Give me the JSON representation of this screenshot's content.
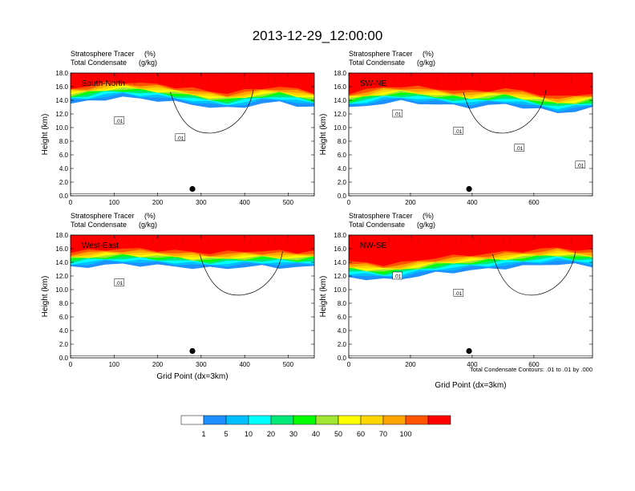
{
  "figure": {
    "title": "2013-12-29_12:00:00",
    "xlabel": "Grid Point (dx=3km)",
    "contour_note": "Total Condensate Contours: .01 to .01 by .000"
  },
  "chart_data": [
    {
      "type": "cross-section",
      "panel_label": "South-North",
      "subtitle_left": [
        "Stratosphere Tracer",
        "Total Condensate"
      ],
      "subtitle_units": [
        "(%)",
        "(g/kg)"
      ],
      "ylabel": "Height (km)",
      "xlim": [
        0,
        560
      ],
      "ylim": [
        0,
        18
      ],
      "xticks": [
        "0",
        "100",
        "200",
        "300",
        "400",
        "500"
      ],
      "yticks": [
        "0.0",
        "2.0",
        "4.0",
        "6.0",
        "8.0",
        "10.0",
        "12.0",
        "14.0",
        "16.0",
        "18.0"
      ],
      "marker_x": 280,
      "contour_labels": [
        ".01",
        ".01"
      ],
      "tropopause_km": [
        14.9,
        15.2,
        15.6,
        15.8,
        15.6,
        15.4,
        15.1,
        14.8,
        14.4,
        14.2,
        14.5,
        14.9,
        15.1,
        14.7,
        14.3
      ]
    },
    {
      "type": "cross-section",
      "panel_label": "SW-NE",
      "subtitle_left": [
        "Stratosphere Tracer",
        "Total Condensate"
      ],
      "subtitle_units": [
        "(%)",
        "(g/kg)"
      ],
      "ylabel": "Height (km)",
      "xlim": [
        0,
        790
      ],
      "ylim": [
        0,
        18
      ],
      "xticks": [
        "0",
        "200",
        "400",
        "600"
      ],
      "yticks": [
        "0.0",
        "2.0",
        "4.0",
        "6.0",
        "8.0",
        "10.0",
        "12.0",
        "14.0",
        "16.0",
        "18.0"
      ],
      "marker_x": 390,
      "contour_labels": [
        ".01",
        ".01",
        ".01",
        ".01"
      ],
      "tropopause_km": [
        14.2,
        14.6,
        15.0,
        15.2,
        15.0,
        14.8,
        14.6,
        14.4,
        14.6,
        14.8,
        14.4,
        14.0,
        13.6,
        13.8,
        14.2
      ]
    },
    {
      "type": "cross-section",
      "panel_label": "West-East",
      "subtitle_left": [
        "Stratosphere Tracer",
        "Total Condensate"
      ],
      "subtitle_units": [
        "(%)",
        "(g/kg)"
      ],
      "ylabel": "Height (km)",
      "xlim": [
        0,
        560
      ],
      "ylim": [
        0,
        18
      ],
      "xticks": [
        "0",
        "100",
        "200",
        "300",
        "400",
        "500"
      ],
      "yticks": [
        "0.0",
        "2.0",
        "4.0",
        "6.0",
        "8.0",
        "10.0",
        "12.0",
        "14.0",
        "16.0",
        "18.0"
      ],
      "marker_x": 280,
      "contour_labels": [
        ".01"
      ],
      "tropopause_km": [
        14.6,
        14.8,
        15.0,
        15.1,
        15.0,
        14.9,
        14.8,
        14.6,
        14.5,
        14.6,
        14.7,
        14.8,
        14.7,
        14.6,
        14.8
      ]
    },
    {
      "type": "cross-section",
      "panel_label": "NW-SE",
      "subtitle_left": [
        "Stratosphere Tracer",
        "Total Condensate"
      ],
      "subtitle_units": [
        "(%)",
        "(g/kg)"
      ],
      "ylabel": "Height (km)",
      "xlim": [
        0,
        790
      ],
      "ylim": [
        0,
        18
      ],
      "xticks": [
        "0",
        "200",
        "400",
        "600"
      ],
      "yticks": [
        "0.0",
        "2.0",
        "4.0",
        "6.0",
        "8.0",
        "10.0",
        "12.0",
        "14.0",
        "16.0",
        "18.0"
      ],
      "marker_x": 390,
      "contour_labels": [
        ".01",
        ".01"
      ],
      "tropopause_km": [
        13.2,
        13.0,
        12.8,
        13.0,
        13.4,
        13.8,
        14.0,
        14.2,
        14.4,
        14.6,
        14.8,
        15.0,
        15.2,
        15.0,
        14.8
      ]
    }
  ],
  "colorbar": {
    "colors": [
      "#ffffff",
      "#1e90ff",
      "#00bfff",
      "#00ffff",
      "#00e878",
      "#00ff00",
      "#a0e632",
      "#ffff00",
      "#ffd700",
      "#ffa500",
      "#ff5500",
      "#ff0000"
    ],
    "labels": [
      "1",
      "5",
      "10",
      "20",
      "30",
      "40",
      "50",
      "60",
      "70",
      "100"
    ]
  }
}
